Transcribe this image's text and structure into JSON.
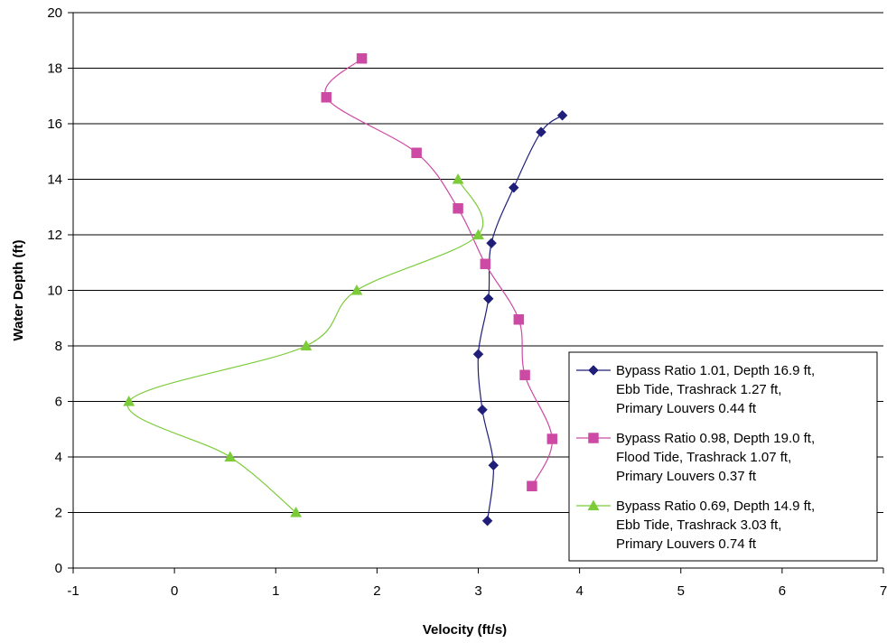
{
  "chart_data": {
    "type": "line",
    "xlabel": "Velocity (ft/s)",
    "ylabel": "Water Depth (ft)",
    "xlim": [
      -1,
      7
    ],
    "ylim": [
      0,
      20
    ],
    "x_ticks": [
      "-1",
      "0",
      "1",
      "2",
      "3",
      "4",
      "5",
      "6",
      "7"
    ],
    "y_ticks": [
      "0",
      "2",
      "4",
      "6",
      "8",
      "10",
      "12",
      "14",
      "16",
      "18",
      "20"
    ],
    "grid": "horizontal",
    "legend_position": "right",
    "series": [
      {
        "name": "Bypass Ratio 1.01, Depth 16.9 ft, Ebb Tide, Trashrack 1.27 ft, Primary Louvers 0.44 ft",
        "legend_lines": [
          "Bypass Ratio 1.01, Depth 16.9 ft,",
          "Ebb Tide, Trashrack 1.27 ft,",
          "Primary Louvers 0.44 ft"
        ],
        "color": "#1f1f7a",
        "marker": "diamond",
        "points": [
          {
            "x": 3.09,
            "y": 1.7
          },
          {
            "x": 3.15,
            "y": 3.7
          },
          {
            "x": 3.04,
            "y": 5.7
          },
          {
            "x": 3.0,
            "y": 7.7
          },
          {
            "x": 3.1,
            "y": 9.7
          },
          {
            "x": 3.13,
            "y": 11.7
          },
          {
            "x": 3.35,
            "y": 13.7
          },
          {
            "x": 3.62,
            "y": 15.7
          },
          {
            "x": 3.83,
            "y": 16.3
          }
        ]
      },
      {
        "name": "Bypass Ratio 0.98, Depth 19.0 ft, Flood Tide, Trashrack 1.07 ft, Primary Louvers 0.37 ft",
        "legend_lines": [
          "Bypass Ratio 0.98, Depth 19.0 ft,",
          "Flood Tide, Trashrack 1.07 ft,",
          "Primary Louvers 0.37 ft"
        ],
        "color": "#cc4aa3",
        "marker": "square",
        "points": [
          {
            "x": 3.53,
            "y": 2.95
          },
          {
            "x": 3.73,
            "y": 4.65
          },
          {
            "x": 3.46,
            "y": 6.95
          },
          {
            "x": 3.4,
            "y": 8.95
          },
          {
            "x": 3.07,
            "y": 10.95
          },
          {
            "x": 2.8,
            "y": 12.95
          },
          {
            "x": 2.39,
            "y": 14.95
          },
          {
            "x": 1.5,
            "y": 16.95
          },
          {
            "x": 1.85,
            "y": 18.35
          }
        ]
      },
      {
        "name": "Bypass Ratio 0.69, Depth 14.9 ft, Ebb Tide, Trashrack 3.03 ft, Primary Louvers 0.74 ft",
        "legend_lines": [
          "Bypass Ratio 0.69, Depth 14.9 ft,",
          "Ebb Tide, Trashrack 3.03 ft,",
          "Primary Louvers 0.74 ft"
        ],
        "color": "#7ccc3a",
        "marker": "triangle",
        "points": [
          {
            "x": 1.2,
            "y": 2.0
          },
          {
            "x": 0.55,
            "y": 4.0
          },
          {
            "x": -0.45,
            "y": 6.0
          },
          {
            "x": 1.3,
            "y": 8.0
          },
          {
            "x": 1.8,
            "y": 10.0
          },
          {
            "x": 3.0,
            "y": 12.0
          },
          {
            "x": 2.8,
            "y": 14.0
          }
        ]
      }
    ]
  }
}
